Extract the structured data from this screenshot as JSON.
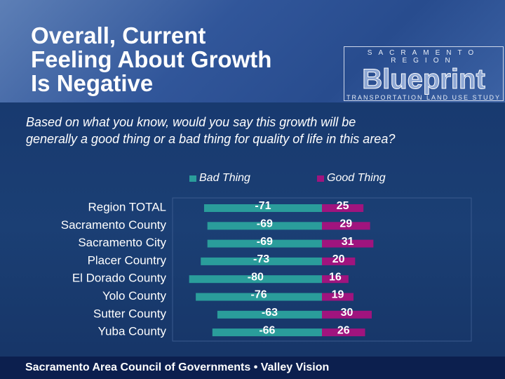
{
  "header": {
    "title": [
      "Overall, Current",
      "Feeling About Growth",
      "Is Negative"
    ],
    "logo": {
      "top": "SACRAMENTO REGION",
      "name": "Blueprint",
      "bottom": "TRANSPORTATION LAND USE STUDY"
    }
  },
  "question": [
    "Based on what you know, would you say this growth will be",
    "generally a good thing or a bad thing for quality of life in this area?"
  ],
  "chart_data": {
    "type": "diverging_bar",
    "categories": [
      "Region TOTAL",
      "Sacramento County",
      "Sacramento City",
      "Placer Country",
      "El Dorado County",
      "Yolo County",
      "Sutter County",
      "Yuba County"
    ],
    "series": [
      {
        "name": "Bad Thing",
        "color": "#2a9d9b",
        "values": [
          -71,
          -69,
          -69,
          -73,
          -80,
          -76,
          -63,
          -66
        ]
      },
      {
        "name": "Good Thing",
        "color": "#a0147e",
        "values": [
          25,
          29,
          31,
          20,
          16,
          19,
          30,
          26
        ]
      }
    ],
    "xlim": [
      -90,
      90
    ],
    "legend": "top"
  },
  "footer": "Sacramento Area Council of Governments • Valley Vision"
}
